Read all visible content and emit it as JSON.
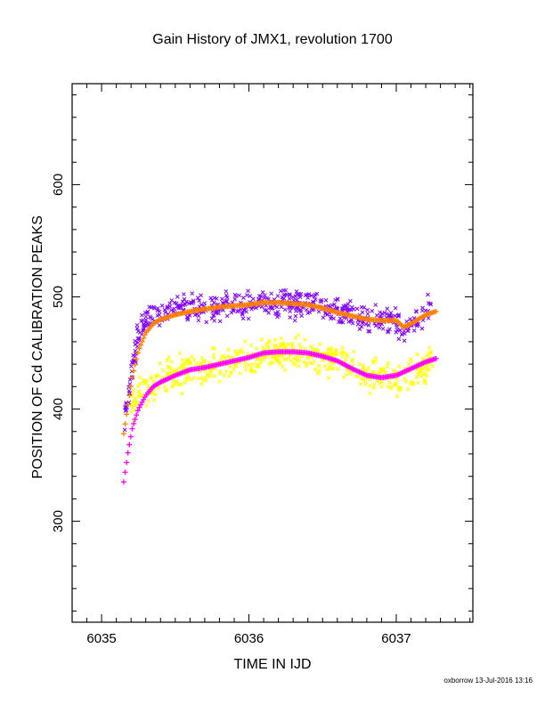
{
  "footer": "oxborrow 13-Jul-2016 13:16",
  "chart_data": {
    "type": "scatter",
    "title": "Gain History of JMX1, revolution 1700",
    "xlabel": "TIME IN IJD",
    "ylabel": "POSITION OF Cd CALIBRATION PEAKS",
    "xlim": [
      6034.8,
      6037.52
    ],
    "ylim": [
      210,
      690
    ],
    "xticks": [
      6035,
      6036,
      6037
    ],
    "yticks": [
      300,
      400,
      500,
      600
    ],
    "grid": false,
    "colors": {
      "upper_scatter": "#8000ff",
      "upper_fit": "#ff7f00",
      "lower_scatter": "#ffff00",
      "lower_fit": "#ff00ff"
    },
    "series": [
      {
        "role": "upper_scatter",
        "marker": "x",
        "x": [
          6035.15,
          6035.2,
          6035.25,
          6035.3,
          6035.35,
          6035.4,
          6035.5,
          6035.6,
          6035.7,
          6035.8,
          6035.9,
          6036.0,
          6036.1,
          6036.2,
          6036.3,
          6036.4,
          6036.5,
          6036.6,
          6036.7,
          6036.8,
          6036.9,
          6037.0,
          6037.05,
          6037.1,
          6037.2,
          6037.25
        ],
        "y": [
          385,
          430,
          465,
          478,
          482,
          485,
          488,
          490,
          492,
          493,
          494,
          494,
          495,
          495,
          494,
          493,
          490,
          486,
          483,
          481,
          480,
          478,
          470,
          478,
          485,
          490
        ],
        "spread": 9
      },
      {
        "role": "upper_fit",
        "marker": "+",
        "x": [
          6035.15,
          6035.18,
          6035.21,
          6035.25,
          6035.3,
          6035.35,
          6035.4,
          6035.5,
          6035.6,
          6035.7,
          6035.8,
          6035.9,
          6036.0,
          6036.1,
          6036.2,
          6036.3,
          6036.4,
          6036.5,
          6036.6,
          6036.7,
          6036.8,
          6036.9,
          6037.0,
          6037.05,
          6037.1,
          6037.2,
          6037.27
        ],
        "y": [
          378,
          405,
          430,
          452,
          468,
          476,
          480,
          484,
          487,
          489,
          491,
          492,
          493,
          495,
          495,
          494,
          493,
          490,
          486,
          483,
          480,
          479,
          479,
          473,
          476,
          484,
          487
        ]
      },
      {
        "role": "lower_scatter",
        "marker": "x",
        "x": [
          6035.2,
          6035.25,
          6035.3,
          6035.4,
          6035.5,
          6035.6,
          6035.7,
          6035.8,
          6035.9,
          6036.0,
          6036.1,
          6036.2,
          6036.3,
          6036.4,
          6036.5,
          6036.6,
          6036.7,
          6036.8,
          6036.9,
          6037.0,
          6037.1,
          6037.2,
          6037.25
        ],
        "y": [
          405,
          415,
          420,
          428,
          432,
          435,
          437,
          440,
          443,
          445,
          448,
          450,
          450,
          449,
          447,
          445,
          440,
          432,
          428,
          426,
          432,
          440,
          445
        ],
        "spread": 11
      },
      {
        "role": "lower_fit",
        "marker": "+",
        "x": [
          6035.15,
          6035.18,
          6035.21,
          6035.25,
          6035.3,
          6035.35,
          6035.4,
          6035.5,
          6035.6,
          6035.7,
          6035.8,
          6035.9,
          6036.0,
          6036.1,
          6036.2,
          6036.3,
          6036.4,
          6036.5,
          6036.6,
          6036.7,
          6036.8,
          6036.9,
          6037.0,
          6037.1,
          6037.2,
          6037.27
        ],
        "y": [
          335,
          362,
          384,
          400,
          412,
          420,
          424,
          430,
          435,
          437,
          440,
          443,
          446,
          450,
          451,
          451,
          450,
          447,
          443,
          436,
          430,
          428,
          430,
          436,
          442,
          445
        ]
      }
    ]
  }
}
